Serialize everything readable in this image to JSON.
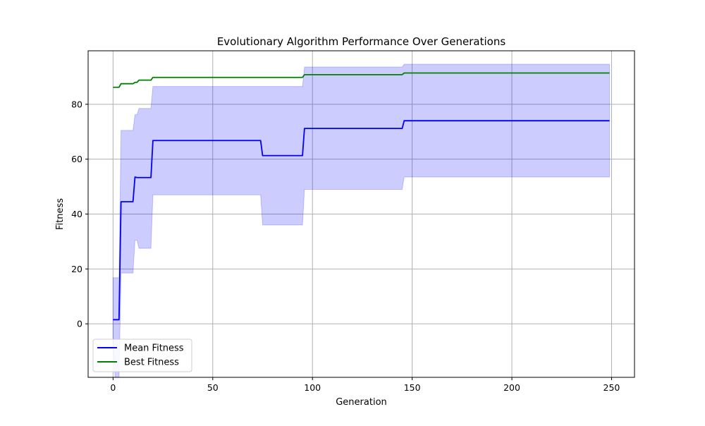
{
  "chart_data": {
    "type": "line",
    "title": "Evolutionary Algorithm Performance Over Generations",
    "xlabel": "Generation",
    "ylabel": "Fitness",
    "xlim": [
      -12.5,
      261.5
    ],
    "ylim": [
      -19.5,
      99.5
    ],
    "xticks": [
      0,
      50,
      100,
      150,
      200,
      250
    ],
    "yticks": [
      0,
      20,
      40,
      60,
      80
    ],
    "grid": true,
    "legend_position": "lower-left",
    "series": [
      {
        "name": "Mean Fitness",
        "color": "#0000ff",
        "points": [
          [
            0,
            1.5
          ],
          [
            3,
            1.5
          ],
          [
            4,
            44.5
          ],
          [
            10,
            44.5
          ],
          [
            11,
            53.5
          ],
          [
            12,
            53.3
          ],
          [
            19,
            53.3
          ],
          [
            20,
            66.8
          ],
          [
            74,
            66.8
          ],
          [
            75,
            61.3
          ],
          [
            95,
            61.3
          ],
          [
            96,
            71.2
          ],
          [
            145,
            71.2
          ],
          [
            146,
            74.0
          ],
          [
            249,
            74.0
          ]
        ]
      },
      {
        "name": "Best Fitness",
        "color": "#008000",
        "points": [
          [
            0,
            86.2
          ],
          [
            3,
            86.2
          ],
          [
            4,
            87.5
          ],
          [
            10,
            87.5
          ],
          [
            11,
            88.0
          ],
          [
            12,
            88.0
          ],
          [
            13,
            88.8
          ],
          [
            19,
            88.8
          ],
          [
            20,
            89.8
          ],
          [
            95,
            89.8
          ],
          [
            96,
            90.8
          ],
          [
            145,
            90.8
          ],
          [
            146,
            91.4
          ],
          [
            249,
            91.4
          ]
        ]
      }
    ],
    "band": {
      "name": "Mean Fitness range",
      "color": "#0000ff",
      "opacity": 0.2,
      "upper": [
        [
          0,
          16.8
        ],
        [
          3,
          16.8
        ],
        [
          4,
          70.5
        ],
        [
          10,
          70.5
        ],
        [
          11,
          76.2
        ],
        [
          12,
          76.2
        ],
        [
          13,
          78.5
        ],
        [
          19,
          78.5
        ],
        [
          20,
          86.5
        ],
        [
          95,
          86.5
        ],
        [
          96,
          93.6
        ],
        [
          145,
          93.6
        ],
        [
          146,
          94.6
        ],
        [
          249,
          94.6
        ]
      ],
      "lower": [
        [
          0,
          -6.5
        ],
        [
          1,
          -19.5
        ],
        [
          3,
          -19.5
        ],
        [
          4,
          18.5
        ],
        [
          10,
          18.5
        ],
        [
          11,
          30.5
        ],
        [
          12,
          30.5
        ],
        [
          13,
          27.5
        ],
        [
          19,
          27.5
        ],
        [
          20,
          47.0
        ],
        [
          74,
          47.0
        ],
        [
          75,
          36.0
        ],
        [
          95,
          36.0
        ],
        [
          96,
          49.0
        ],
        [
          145,
          49.0
        ],
        [
          146,
          53.5
        ],
        [
          249,
          53.5
        ]
      ]
    }
  }
}
